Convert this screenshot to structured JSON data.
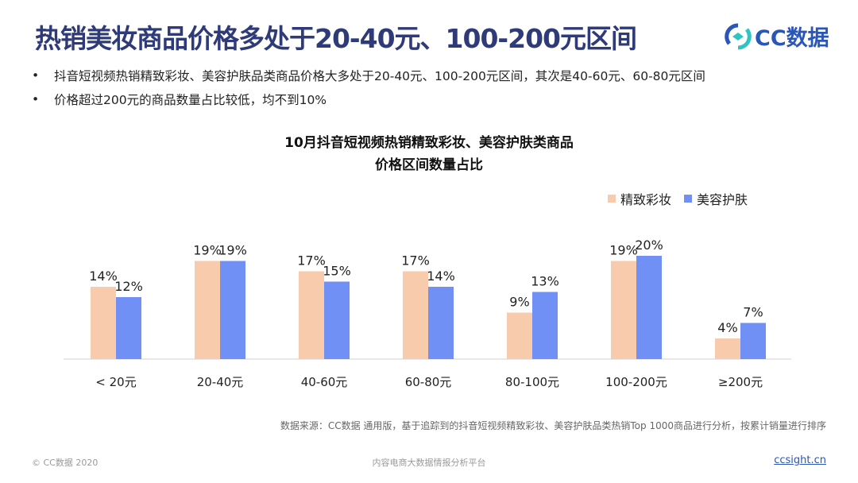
{
  "title": "热销美妆商品价格多处于20-40元、100-200元区间",
  "logo": {
    "text": "CC数据",
    "color": "#2a56b8"
  },
  "bullets": [
    "抖音短视频热销精致彩妆、美容护肤品类商品价格大多处于20-40元、100-200元区间，其次是40-60元、60-80元区间",
    "价格超过200元的商品数量占比较低，均不到10%"
  ],
  "chart_data": {
    "type": "bar",
    "title": [
      "10月抖音短视频热销精致彩妆、美容护肤类商品",
      "价格区间数量占比"
    ],
    "categories": [
      "< 20元",
      "20-40元",
      "40-60元",
      "60-80元",
      "80-100元",
      "100-200元",
      "≥200元"
    ],
    "series": [
      {
        "name": "精致彩妆",
        "values": [
          14,
          19,
          17,
          17,
          9,
          19,
          4
        ],
        "color": "#f8cbad"
      },
      {
        "name": "美容护肤",
        "values": [
          12,
          19,
          15,
          14,
          13,
          20,
          7
        ],
        "color": "#7090f5"
      }
    ],
    "value_suffix": "%",
    "ylim": [
      0,
      22
    ],
    "grid": false,
    "legend": "top-right"
  },
  "source": "数据来源：CC数据 通用版，基于追踪到的抖音短视频精致彩妆、美容护肤品类热销Top 1000商品进行分析，按累计销量进行排序",
  "footer": {
    "copyright": "© CC数据 2020",
    "center": "内容电商大数据情报分析平台",
    "link": "ccsight.cn"
  }
}
